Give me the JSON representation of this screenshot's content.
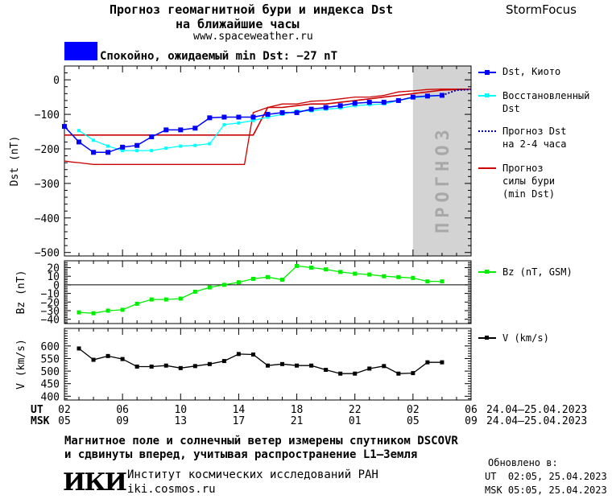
{
  "header": {
    "title_line1": "Прогноз геомагнитной бури и индекса Dst",
    "title_line2": "на ближайшие часы",
    "website": "www.spaceweather.ru",
    "brand": "StormFocus",
    "status_color": "#0000ff",
    "status_text": "Спокойно, ожидаемый min Dst: −27 nT"
  },
  "forecast_band_label": "ПРОГНОЗ",
  "legend": {
    "dst_kyoto": "Dst, Киото",
    "restored_1": "Восстановленный",
    "restored_2": "Dst",
    "forecast_dst_1": "Прогноз Dst",
    "forecast_dst_2": "на 2-4 часа",
    "storm_1": "Прогноз",
    "storm_2": "силы бури",
    "storm_3": "(min Dst)",
    "bz": "Bz (nT, GSM)",
    "v": "V (km/s)"
  },
  "time_axis": {
    "ut_label": "UT",
    "msk_label": "MSK",
    "ut_ticks": [
      "02",
      "06",
      "10",
      "14",
      "18",
      "22",
      "02",
      "06"
    ],
    "msk_ticks": [
      "05",
      "09",
      "13",
      "17",
      "21",
      "01",
      "05",
      "09"
    ],
    "date_range_ut": "24.04–25.04.2023",
    "date_range_msk": "24.04–25.04.2023"
  },
  "footer": {
    "note_line1": "Магнитное поле и солнечный ветер измерены спутником DSCOVR",
    "note_line2": "и сдвинуты вперед, учитывая распространение L1–Земля",
    "logo": "ИКИ",
    "institute": "Институт космических исследований РАН",
    "institute_site": "iki.cosmos.ru",
    "updated_label": "Обновлено в:",
    "updated_ut": "UT  02:05, 25.04.2023",
    "updated_msk": "MSK 05:05, 25.04.2023"
  },
  "colors": {
    "dst": "#0000ff",
    "restored": "#00ffff",
    "forecast_dst": "#0000aa",
    "storm": "#cc0000",
    "bz": "#00ee00",
    "v": "#000000",
    "forecast_band": "#d3d3d3"
  },
  "chart_data": [
    {
      "type": "line",
      "panel": "dst",
      "ylabel": "Dst (nT)",
      "xlabel": "UT",
      "x_hours_from_start": [
        0,
        28
      ],
      "forecast_from_hour": 24,
      "ylim": [
        -510,
        40
      ],
      "yticks": [
        0,
        -100,
        -200,
        -300,
        -400,
        -500
      ],
      "series": [
        {
          "name": "Dst, Киото",
          "x": [
            0,
            1,
            2,
            3,
            4,
            5,
            6,
            7,
            8,
            9,
            10,
            11,
            12,
            13,
            14,
            15,
            16,
            17,
            18,
            19,
            20,
            21,
            22,
            23,
            24,
            25,
            26
          ],
          "values": [
            -135,
            -180,
            -210,
            -210,
            -195,
            -190,
            -165,
            -145,
            -145,
            -140,
            -110,
            -108,
            -108,
            -108,
            -100,
            -95,
            -95,
            -85,
            -80,
            -75,
            -68,
            -65,
            -65,
            -60,
            -50,
            -47,
            -45
          ]
        },
        {
          "name": "Восстановленный Dst",
          "x": [
            1,
            2,
            3,
            4,
            5,
            6,
            7,
            8,
            9,
            10,
            11,
            12,
            13,
            14,
            15,
            16,
            17,
            18,
            19,
            20,
            21,
            22,
            23,
            24,
            25,
            26
          ],
          "values": [
            -147,
            -175,
            -192,
            -205,
            -205,
            -205,
            -198,
            -192,
            -190,
            -185,
            -130,
            -125,
            -118,
            -108,
            -100,
            -90,
            -90,
            -85,
            -82,
            -75,
            -72,
            -70,
            -60,
            -52,
            -48,
            -45
          ]
        },
        {
          "name": "Прогноз Dst на 2-4 часа",
          "x": [
            26,
            27,
            28
          ],
          "values": [
            -45,
            -30,
            -28
          ]
        },
        {
          "name": "Прогноз силы бури (min Dst)",
          "style": "step",
          "x": [
            0,
            11.6,
            11.6,
            12.9,
            13,
            14,
            15,
            16,
            17,
            18,
            19,
            20,
            21,
            22,
            23,
            24,
            25,
            26,
            28
          ],
          "values": [
            -160,
            -160,
            -160,
            -160,
            -160,
            -80,
            -80,
            -75,
            -70,
            -70,
            -65,
            -60,
            -55,
            -50,
            -45,
            -40,
            -35,
            -30,
            -27
          ]
        },
        {
          "name": "lower",
          "style": "step",
          "x": [
            0,
            0.5,
            1,
            2,
            12,
            12.4,
            13,
            14,
            15,
            16,
            17,
            18,
            19,
            20,
            21,
            22,
            23,
            24,
            25,
            26,
            28
          ],
          "values": [
            -235,
            -238,
            -240,
            -245,
            -245,
            -245,
            -95,
            -80,
            -70,
            -70,
            -62,
            -60,
            -55,
            -50,
            -50,
            -45,
            -35,
            -32,
            -28,
            -27,
            -27
          ]
        }
      ]
    },
    {
      "type": "line",
      "panel": "bz",
      "ylabel": "Bz (nT)",
      "ylim": [
        -45,
        28
      ],
      "yticks": [
        20,
        10,
        0,
        -10,
        -20,
        -30,
        -40
      ],
      "series": [
        {
          "name": "Bz (nT, GSM)",
          "x": [
            1,
            2,
            3,
            4,
            5,
            6,
            7,
            8,
            9,
            10,
            11,
            12,
            13,
            14,
            15,
            16,
            17,
            18,
            19,
            20,
            21,
            22,
            23,
            24,
            25,
            26
          ],
          "values": [
            -32,
            -33,
            -30,
            -29,
            -22,
            -17,
            -17,
            -16,
            -8,
            -3,
            0,
            3,
            7,
            9,
            6,
            22,
            20,
            18,
            15,
            13,
            12,
            10,
            9,
            8,
            4,
            4
          ]
        }
      ]
    },
    {
      "type": "line",
      "panel": "v",
      "ylabel": "V (km/s)",
      "ylim": [
        385,
        670
      ],
      "yticks": [
        600,
        550,
        500,
        450,
        400
      ],
      "series": [
        {
          "name": "V (km/s)",
          "x": [
            1,
            2,
            3,
            4,
            5,
            6,
            7,
            8,
            9,
            10,
            11,
            12,
            13,
            14,
            15,
            16,
            17,
            18,
            19,
            20,
            21,
            22,
            23,
            24,
            25,
            26
          ],
          "values": [
            590,
            545,
            560,
            548,
            518,
            518,
            522,
            512,
            520,
            528,
            540,
            568,
            566,
            522,
            528,
            522,
            522,
            505,
            490,
            490,
            510,
            520,
            490,
            492,
            535,
            535
          ]
        }
      ]
    }
  ]
}
